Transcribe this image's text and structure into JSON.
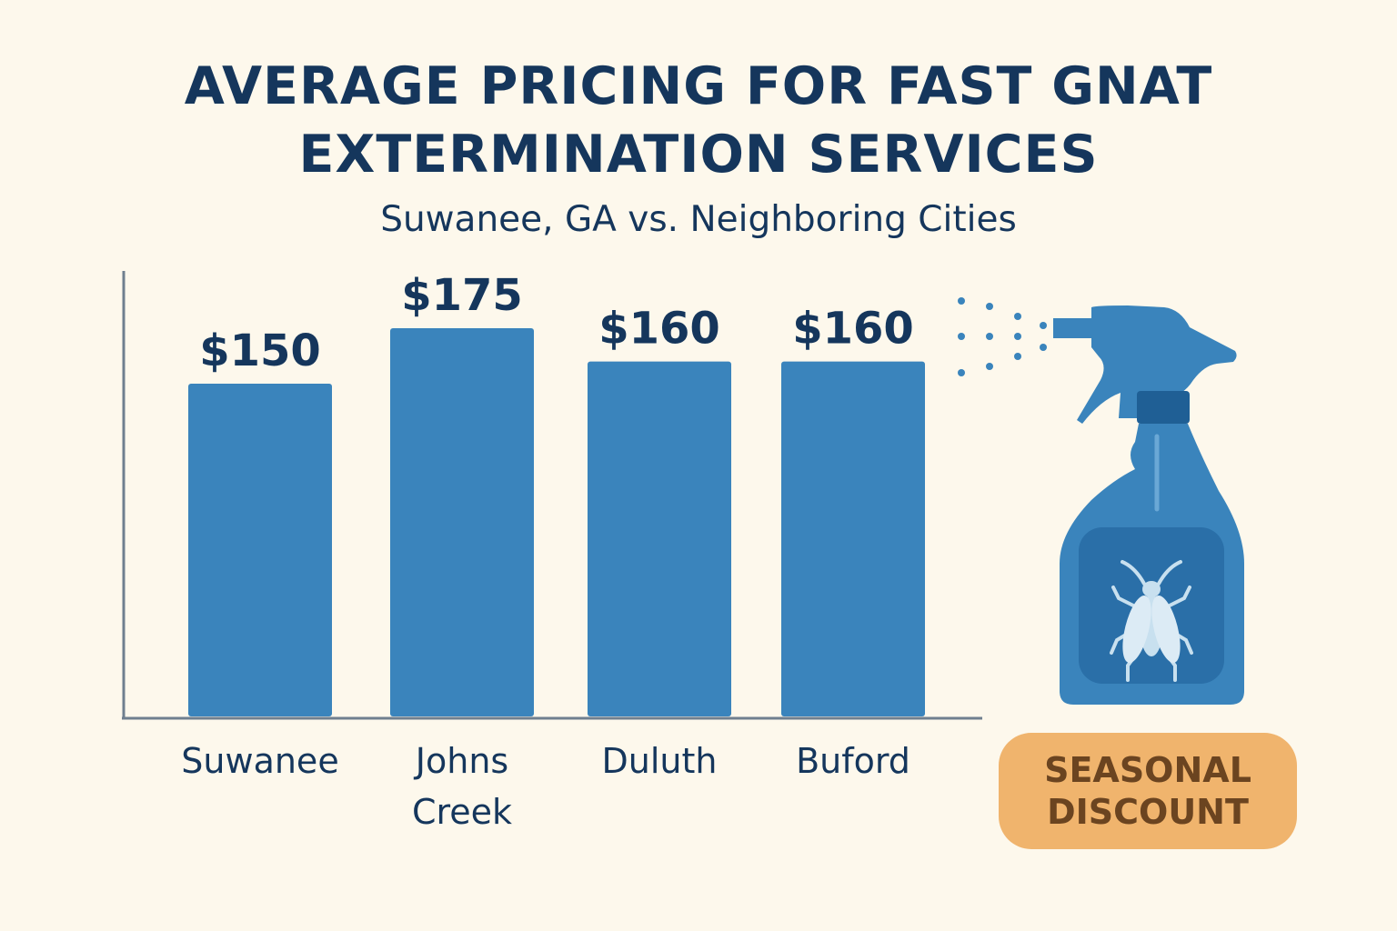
{
  "title_lines": [
    "AVERAGE PRICING FOR FAST GNAT",
    "EXTERMINATION SERVICES"
  ],
  "subtitle": "Suwanee, GA vs. Neighboring Cities",
  "badge_lines": [
    "SEASONAL",
    "DISCOUNT"
  ],
  "icons": [
    "spray-bottle-icon",
    "gnat-icon"
  ],
  "colors": {
    "background": "#fdf8ec",
    "bar": "#3a84bc",
    "text": "#15365c",
    "badge": "#f0b46d",
    "badge_text": "#6b4420"
  },
  "chart_data": {
    "type": "bar",
    "title": "AVERAGE PRICING FOR FAST GNAT EXTERMINATION SERVICES",
    "subtitle": "Suwanee, GA vs. Neighboring Cities",
    "categories": [
      [
        "Suwanee"
      ],
      [
        "Johns",
        "Creek"
      ],
      [
        "Duluth"
      ],
      [
        "Buford"
      ]
    ],
    "values": [
      150,
      175,
      160,
      160
    ],
    "value_labels": [
      "$150",
      "$175",
      "$160",
      "$160"
    ],
    "ylim": [
      0,
      200
    ],
    "grid": false,
    "legend": "none"
  }
}
